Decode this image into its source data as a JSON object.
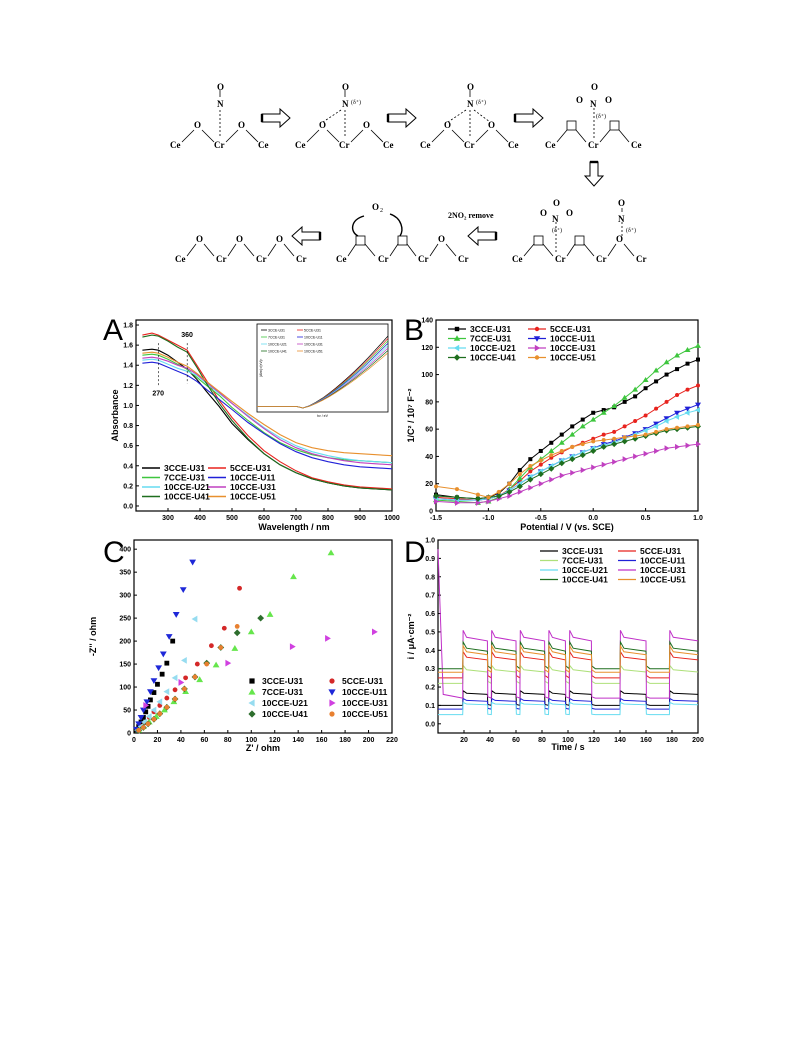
{
  "mechanism": {
    "steps_top": [
      {
        "id": "s1",
        "labels": [
          "Ce",
          "O",
          "Cr",
          "O",
          "Ce"
        ],
        "adsorbate": "N",
        "adsorbate_o": "O",
        "note": ""
      },
      {
        "id": "s2",
        "labels": [
          "Ce",
          "O",
          "Cr",
          "O",
          "Ce"
        ],
        "adsorbate": "N",
        "adsorbate_o": "O",
        "note": "(δ⁺)"
      },
      {
        "id": "s3",
        "labels": [
          "Ce",
          "O",
          "Cr",
          "O",
          "Ce"
        ],
        "adsorbate": "N",
        "adsorbate_o": "O",
        "note": "(δ⁺)"
      },
      {
        "id": "s4",
        "labels": [
          "Ce",
          "Cr",
          "Ce"
        ],
        "adsorbate": "N",
        "adsorbate_o": "O",
        "note": "(δ⁺)"
      }
    ],
    "o2_label": "O₂",
    "remove_label": "2NO₂ remove",
    "bottom_final_labels": [
      "Ce",
      "O",
      "Cr",
      "O",
      "Cr",
      "O",
      "Cr"
    ],
    "bottom_mid_labels": [
      "Ce",
      "Cr",
      "Cr",
      "O",
      "Cr"
    ],
    "bottom_start_labels": [
      "Ce",
      "Cr",
      "Cr",
      "O",
      "Cr"
    ],
    "bottom_start_notes": [
      "(δ⁺)",
      "(δ⁺)"
    ]
  },
  "chart_data": [
    {
      "panel": "A",
      "type": "line",
      "xlabel": "Wavelength / nm",
      "ylabel": "Absorbance",
      "xlim": [
        200,
        1000
      ],
      "ylim": [
        -0.05,
        1.85
      ],
      "xticks": [
        300,
        400,
        500,
        600,
        700,
        800,
        900,
        1000
      ],
      "yticks": [
        0.0,
        0.2,
        0.4,
        0.6,
        0.8,
        1.0,
        1.2,
        1.4,
        1.6,
        1.8
      ],
      "annotations": [
        "360",
        "270"
      ],
      "x": [
        220,
        250,
        270,
        300,
        330,
        360,
        390,
        420,
        460,
        500,
        550,
        600,
        650,
        700,
        750,
        800,
        850,
        900,
        950,
        1000
      ],
      "series": [
        {
          "name": "3CCE-U31",
          "color": "#000000",
          "values": [
            1.55,
            1.56,
            1.55,
            1.5,
            1.43,
            1.36,
            1.26,
            1.14,
            0.99,
            0.82,
            0.66,
            0.52,
            0.41,
            0.33,
            0.27,
            0.23,
            0.2,
            0.18,
            0.17,
            0.16
          ]
        },
        {
          "name": "5CCE-U31",
          "color": "#e8231e",
          "values": [
            1.7,
            1.72,
            1.7,
            1.65,
            1.6,
            1.55,
            1.4,
            1.25,
            1.05,
            0.88,
            0.7,
            0.55,
            0.44,
            0.35,
            0.28,
            0.24,
            0.21,
            0.19,
            0.18,
            0.17
          ]
        },
        {
          "name": "7CCE-U31",
          "color": "#3ec63e",
          "values": [
            1.5,
            1.51,
            1.5,
            1.46,
            1.41,
            1.36,
            1.28,
            1.2,
            1.1,
            0.98,
            0.85,
            0.73,
            0.63,
            0.56,
            0.51,
            0.48,
            0.46,
            0.45,
            0.44,
            0.43
          ]
        },
        {
          "name": "10CCE-U11",
          "color": "#2020d8",
          "values": [
            1.42,
            1.43,
            1.42,
            1.38,
            1.34,
            1.3,
            1.24,
            1.16,
            1.06,
            0.96,
            0.83,
            0.72,
            0.62,
            0.54,
            0.48,
            0.44,
            0.41,
            0.39,
            0.38,
            0.37
          ]
        },
        {
          "name": "10CCE-U21",
          "color": "#66dcf0",
          "values": [
            1.45,
            1.46,
            1.45,
            1.41,
            1.37,
            1.34,
            1.3,
            1.22,
            1.12,
            1.02,
            0.9,
            0.78,
            0.68,
            0.6,
            0.54,
            0.5,
            0.47,
            0.45,
            0.44,
            0.43
          ]
        },
        {
          "name": "10CCE-U31",
          "color": "#c040c0",
          "values": [
            1.47,
            1.48,
            1.47,
            1.44,
            1.4,
            1.37,
            1.31,
            1.23,
            1.13,
            1.02,
            0.89,
            0.77,
            0.66,
            0.58,
            0.52,
            0.48,
            0.45,
            0.43,
            0.42,
            0.41
          ]
        },
        {
          "name": "10CCE-U41",
          "color": "#1e6e1e",
          "values": [
            1.68,
            1.7,
            1.69,
            1.64,
            1.58,
            1.53,
            1.38,
            1.22,
            1.02,
            0.85,
            0.67,
            0.52,
            0.41,
            0.33,
            0.27,
            0.23,
            0.2,
            0.18,
            0.17,
            0.16
          ]
        },
        {
          "name": "10CCE-U51",
          "color": "#e8902e",
          "values": [
            1.52,
            1.53,
            1.52,
            1.48,
            1.43,
            1.39,
            1.32,
            1.24,
            1.14,
            1.04,
            0.92,
            0.81,
            0.71,
            0.63,
            0.58,
            0.55,
            0.53,
            0.52,
            0.51,
            0.5
          ]
        }
      ]
    },
    {
      "panel": "B",
      "type": "line",
      "xlabel": "Potential / V (vs. SCE)",
      "ylabel": "1/C² / 10⁷ F⁻²",
      "xlim": [
        -1.5,
        1.0
      ],
      "ylim": [
        0,
        140
      ],
      "xticks": [
        -1.5,
        -1.0,
        -0.5,
        0.0,
        0.5,
        1.0
      ],
      "yticks": [
        0,
        20,
        40,
        60,
        80,
        100,
        120,
        140
      ],
      "x": [
        -1.5,
        -1.3,
        -1.1,
        -1.0,
        -0.9,
        -0.8,
        -0.7,
        -0.6,
        -0.5,
        -0.4,
        -0.3,
        -0.2,
        -0.1,
        0.0,
        0.1,
        0.2,
        0.3,
        0.4,
        0.5,
        0.6,
        0.7,
        0.8,
        0.9,
        1.0
      ],
      "series": [
        {
          "name": "3CCE-U31",
          "color": "#000000",
          "values": [
            12,
            10,
            9,
            10,
            13,
            20,
            30,
            38,
            44,
            50,
            56,
            62,
            67,
            72,
            74,
            76,
            80,
            84,
            90,
            95,
            100,
            104,
            108,
            111
          ]
        },
        {
          "name": "5CCE-U31",
          "color": "#e8231e",
          "values": [
            10,
            9,
            8,
            9,
            11,
            16,
            22,
            29,
            34,
            39,
            43,
            47,
            50,
            53,
            56,
            58,
            62,
            66,
            70,
            75,
            80,
            85,
            89,
            92
          ]
        },
        {
          "name": "7CCE-U31",
          "color": "#3ec63e",
          "values": [
            8,
            7,
            6,
            7,
            10,
            16,
            24,
            32,
            38,
            44,
            50,
            56,
            62,
            67,
            72,
            77,
            83,
            89,
            96,
            103,
            109,
            114,
            118,
            121
          ]
        },
        {
          "name": "10CCE-U11",
          "color": "#2020d8",
          "values": [
            9,
            8,
            8,
            9,
            11,
            15,
            20,
            25,
            29,
            33,
            37,
            40,
            43,
            46,
            49,
            51,
            54,
            57,
            60,
            64,
            68,
            72,
            75,
            78
          ]
        },
        {
          "name": "10CCE-U21",
          "color": "#66dcf0",
          "values": [
            9,
            8,
            8,
            9,
            11,
            15,
            20,
            25,
            29,
            33,
            37,
            40,
            43,
            46,
            48,
            50,
            53,
            56,
            59,
            62,
            66,
            69,
            72,
            74
          ]
        },
        {
          "name": "10CCE-U31",
          "color": "#c040c0",
          "values": [
            7,
            6,
            6,
            7,
            9,
            11,
            14,
            17,
            20,
            23,
            26,
            28,
            30,
            32,
            34,
            36,
            38,
            40,
            42,
            44,
            46,
            47,
            48,
            49
          ]
        },
        {
          "name": "10CCE-U41",
          "color": "#1e6e1e",
          "values": [
            11,
            10,
            9,
            10,
            11,
            14,
            18,
            23,
            27,
            31,
            35,
            38,
            41,
            44,
            47,
            49,
            51,
            53,
            55,
            57,
            59,
            60,
            61,
            62
          ]
        },
        {
          "name": "10CCE-U51",
          "color": "#e8902e",
          "values": [
            18,
            16,
            12,
            10,
            14,
            20,
            27,
            33,
            37,
            41,
            44,
            47,
            49,
            51,
            52,
            53,
            54,
            55,
            56,
            58,
            60,
            61,
            62,
            63
          ]
        }
      ]
    },
    {
      "panel": "C",
      "type": "scatter",
      "xlabel": "Z' / ohm",
      "ylabel": "-Z'' / ohm",
      "xlim": [
        0,
        220
      ],
      "ylim": [
        0,
        420
      ],
      "xticks": [
        0,
        20,
        40,
        60,
        80,
        100,
        120,
        140,
        160,
        180,
        200,
        220
      ],
      "yticks": [
        0,
        50,
        100,
        150,
        200,
        250,
        300,
        350,
        400
      ],
      "series": [
        {
          "name": "3CCE-U31",
          "color": "#000000",
          "marker": "square",
          "x": [
            2,
            4,
            6,
            8,
            10,
            12,
            14,
            17,
            20,
            24,
            28,
            33
          ],
          "y": [
            6,
            14,
            24,
            34,
            46,
            58,
            72,
            88,
            106,
            128,
            152,
            200
          ]
        },
        {
          "name": "5CCE-U31",
          "color": "#d42828",
          "marker": "circle",
          "x": [
            3,
            6,
            9,
            13,
            17,
            22,
            28,
            35,
            44,
            54,
            66,
            77,
            90
          ],
          "y": [
            6,
            14,
            22,
            34,
            46,
            60,
            76,
            94,
            120,
            150,
            190,
            228,
            315
          ]
        },
        {
          "name": "7CCE-U31",
          "color": "#66e64c",
          "marker": "triangle-up",
          "x": [
            4,
            8,
            13,
            19,
            26,
            34,
            44,
            56,
            70,
            86,
            100,
            116,
            136,
            168
          ],
          "y": [
            6,
            14,
            24,
            36,
            50,
            68,
            90,
            116,
            148,
            184,
            220,
            258,
            340,
            392
          ]
        },
        {
          "name": "10CCE-U11",
          "color": "#1e28d8",
          "marker": "triangle-down",
          "x": [
            2,
            4,
            6,
            8,
            11,
            14,
            17,
            21,
            25,
            30,
            36,
            42,
            50
          ],
          "y": [
            8,
            20,
            34,
            50,
            68,
            90,
            114,
            142,
            172,
            210,
            258,
            312,
            372
          ]
        },
        {
          "name": "10CCE-U21",
          "color": "#96dcf0",
          "marker": "triangle-left",
          "x": [
            3,
            6,
            9,
            13,
            17,
            22,
            28,
            35,
            43,
            52
          ],
          "y": [
            6,
            14,
            24,
            36,
            50,
            68,
            90,
            120,
            158,
            248
          ]
        },
        {
          "name": "10CCE-U31",
          "color": "#d040e0",
          "marker": "triangle-right",
          "x": [
            10,
            40,
            80,
            135,
            165,
            205
          ],
          "y": [
            60,
            110,
            152,
            188,
            206,
            220
          ]
        },
        {
          "name": "10CCE-U41",
          "color": "#2e6e2e",
          "marker": "diamond",
          "x": [
            4,
            8,
            12,
            17,
            22,
            28,
            35,
            43,
            52,
            62,
            74,
            88,
            108
          ],
          "y": [
            6,
            12,
            20,
            30,
            42,
            56,
            74,
            96,
            122,
            152,
            186,
            218,
            250
          ]
        },
        {
          "name": "10CCE-U51",
          "color": "#e88030",
          "marker": "circle",
          "x": [
            4,
            8,
            12,
            17,
            22,
            28,
            35,
            43,
            52,
            62,
            74,
            88
          ],
          "y": [
            6,
            12,
            20,
            30,
            42,
            56,
            74,
            96,
            122,
            150,
            186,
            232
          ]
        }
      ]
    },
    {
      "panel": "D",
      "type": "line",
      "xlabel": "Time / s",
      "ylabel": "i / μA·cm⁻²",
      "xlim": [
        0,
        200
      ],
      "ylim": [
        -0.05,
        1.0
      ],
      "xticks": [
        20,
        40,
        60,
        80,
        100,
        120,
        140,
        160,
        180,
        200
      ],
      "yticks": [
        0.0,
        0.1,
        0.2,
        0.3,
        0.4,
        0.5,
        0.6,
        0.7,
        0.8,
        0.9,
        1.0
      ],
      "on_intervals": [
        [
          19,
          38
        ],
        [
          41,
          60
        ],
        [
          63,
          82
        ],
        [
          85,
          98
        ],
        [
          101,
          118
        ],
        [
          140,
          160
        ],
        [
          178,
          200
        ]
      ],
      "series": [
        {
          "name": "3CCE-U31",
          "color": "#000000",
          "baseline": 0.1,
          "on_level": 0.17
        },
        {
          "name": "5CCE-U31",
          "color": "#e8231e",
          "baseline": 0.25,
          "on_level": 0.37
        },
        {
          "name": "7CCE-U31",
          "color": "#aee07a",
          "baseline": 0.22,
          "on_level": 0.3
        },
        {
          "name": "10CCE-U11",
          "color": "#2020d8",
          "baseline": 0.08,
          "on_level": 0.13
        },
        {
          "name": "10CCE-U21",
          "color": "#66dcf0",
          "baseline": 0.05,
          "on_level": 0.11
        },
        {
          "name": "10CCE-U31",
          "color": "#c030c8",
          "baseline": 0.14,
          "on_level": 0.48,
          "spike": 0.95
        },
        {
          "name": "10CCE-U41",
          "color": "#1e6e1e",
          "baseline": 0.3,
          "on_level": 0.42
        },
        {
          "name": "10CCE-U51",
          "color": "#e8902e",
          "baseline": 0.28,
          "on_level": 0.4
        }
      ]
    }
  ],
  "inset": {
    "xlabel": "hν / eV",
    "ylabel": "(Ahν)²/(eV)²",
    "legend": [
      "3CCE-U31",
      "5CCE-U31",
      "7CCE-U31",
      "10CCE-U11",
      "10CCE-U21",
      "10CCE-U31",
      "10CCE-U41",
      "10CCE-U51"
    ]
  },
  "panels": {
    "A": "A",
    "B": "B",
    "C": "C",
    "D": "D"
  }
}
